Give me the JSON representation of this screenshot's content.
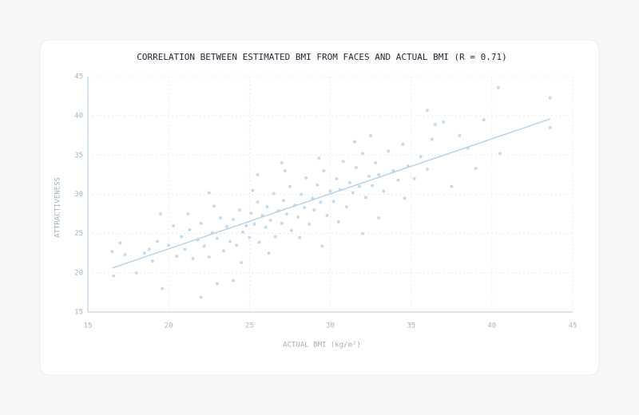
{
  "chart_data": {
    "type": "scatter",
    "title": "CORRELATION BETWEEN ESTIMATED BMI FROM FACES AND ACTUAL BMI (R = 0.71)",
    "x_label": "ACTUAL BMI (kg/m²)",
    "y_label": "ATTRACTIVENESS",
    "color": "#c3dbf1",
    "trend_color": "#b9d3ec",
    "xlim": [
      15,
      45
    ],
    "ylim": [
      15,
      45
    ],
    "xticks": [
      15,
      20,
      25,
      30,
      35,
      40,
      45
    ],
    "yticks": [
      15,
      20,
      25,
      30,
      35,
      40,
      45
    ],
    "grid": true,
    "x": [
      16.5,
      16.6,
      17,
      17.3,
      18,
      18.5,
      19.6,
      22,
      23,
      24,
      43.6,
      43.6,
      40.4,
      40.5,
      36,
      36.5,
      39.5,
      38,
      37,
      38.5,
      39,
      37.5,
      34.6,
      29.5,
      32,
      27,
      25.5,
      22.5,
      19.5,
      20.0,
      20.5,
      20.8,
      21.0,
      21.3,
      21.5,
      21.8,
      22.0,
      22.2,
      22.5,
      22.7,
      23.0,
      23.2,
      23.4,
      23.6,
      23.8,
      24.0,
      24.2,
      24.4,
      24.6,
      24.8,
      25.0,
      25.1,
      25.3,
      25.5,
      25.6,
      25.8,
      26.0,
      26.1,
      26.3,
      26.5,
      26.6,
      26.8,
      27.0,
      27.1,
      27.3,
      27.5,
      27.6,
      27.8,
      28.0,
      28.2,
      28.4,
      28.5,
      28.7,
      28.9,
      29.0,
      29.2,
      29.4,
      29.6,
      29.8,
      30.0,
      30.2,
      30.4,
      30.6,
      30.8,
      31.0,
      31.2,
      31.4,
      31.6,
      31.8,
      32.0,
      32.2,
      32.4,
      32.6,
      32.8,
      33.0,
      33.3,
      33.6,
      33.9,
      34.2,
      34.5,
      34.8,
      35.2,
      35.6,
      36.0,
      36.3,
      20.3,
      19.0,
      19.3,
      18.8,
      22.8,
      24.5,
      26.2,
      27.2,
      28.1,
      30.5,
      31.5,
      33.0,
      32.5,
      29.3,
      25.2,
      21.2
    ],
    "y": [
      22.7,
      19.6,
      23.8,
      22.3,
      20,
      22.5,
      18,
      16.9,
      18.6,
      19,
      42.3,
      38.5,
      43.6,
      35.2,
      40.7,
      38.9,
      39.5,
      37.5,
      39.2,
      35.9,
      33.3,
      31,
      29.5,
      23.4,
      25,
      34,
      32.5,
      30.2,
      27.5,
      23.5,
      22.1,
      24.6,
      23.0,
      25.5,
      21.8,
      24.2,
      26.3,
      23.4,
      22.0,
      25.1,
      24.4,
      27.0,
      22.8,
      25.9,
      24.0,
      26.8,
      23.5,
      28.0,
      25.2,
      26.0,
      24.5,
      27.6,
      26.2,
      29.0,
      23.9,
      27.3,
      25.8,
      28.4,
      26.7,
      30.1,
      24.6,
      27.9,
      26.3,
      29.2,
      27.5,
      31.0,
      25.4,
      28.6,
      27.1,
      30.0,
      28.3,
      32.1,
      26.2,
      29.5,
      28.0,
      31.2,
      29.0,
      33.0,
      27.3,
      30.4,
      29.1,
      32.0,
      30.6,
      34.2,
      28.4,
      31.5,
      30.2,
      33.4,
      31.0,
      35.2,
      29.6,
      32.3,
      31.1,
      34.0,
      32.5,
      30.4,
      35.5,
      33.0,
      31.8,
      36.4,
      33.6,
      32.0,
      34.8,
      33.2,
      37.0,
      26.0,
      21.5,
      24.0,
      23.0,
      28.5,
      21.3,
      22.5,
      33.0,
      24.5,
      26.5,
      36.7,
      27.0,
      37.5,
      34.6,
      30.5,
      27.5
    ],
    "trend_line": {
      "x": [
        16.5,
        43.6
      ],
      "y": [
        20.6,
        39.6
      ]
    }
  }
}
